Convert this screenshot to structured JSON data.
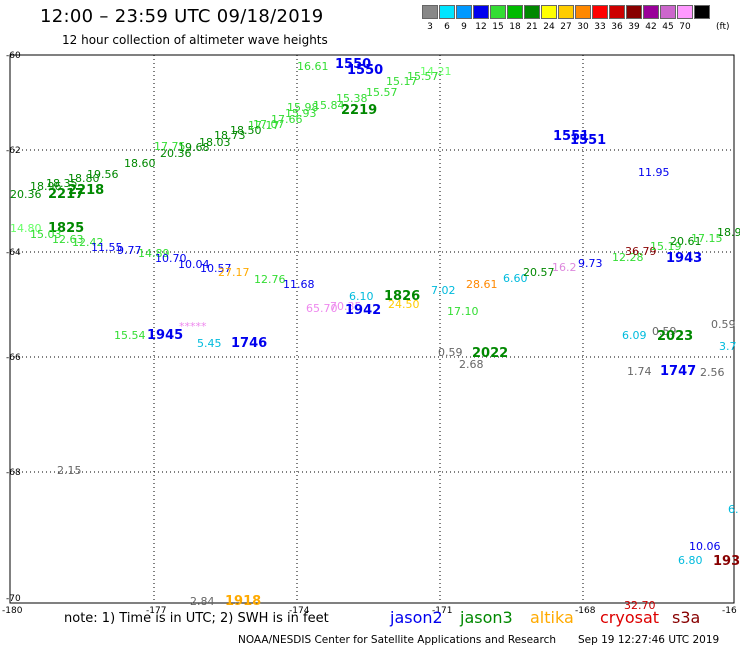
{
  "header": {
    "title": "12:00 – 23:59 UTC 09/18/2019",
    "subtitle": "12 hour collection of altimeter wave heights"
  },
  "colorbar": {
    "unit": "(ft)",
    "items": [
      {
        "label": "3",
        "color": "#888888"
      },
      {
        "label": "6",
        "color": "#00e5ff"
      },
      {
        "label": "9",
        "color": "#0099ff"
      },
      {
        "label": "12",
        "color": "#0000ee"
      },
      {
        "label": "15",
        "color": "#33dd33"
      },
      {
        "label": "18",
        "color": "#00bb00"
      },
      {
        "label": "21",
        "color": "#008800"
      },
      {
        "label": "24",
        "color": "#ffff00"
      },
      {
        "label": "27",
        "color": "#ffcc00"
      },
      {
        "label": "30",
        "color": "#ff8800"
      },
      {
        "label": "33",
        "color": "#ff0000"
      },
      {
        "label": "36",
        "color": "#cc0000"
      },
      {
        "label": "39",
        "color": "#880000"
      },
      {
        "label": "42",
        "color": "#990099"
      },
      {
        "label": "45",
        "color": "#cc66cc"
      },
      {
        "label": "70",
        "color": "#ff99ff"
      },
      {
        "label": "",
        "color": "#000000"
      }
    ]
  },
  "axes": {
    "lat_labels": [
      "-60",
      "-62",
      "-64",
      "-66",
      "-68",
      "-70"
    ],
    "lon_labels": [
      "-180",
      "-177",
      "-174",
      "-171",
      "-168",
      "-16"
    ]
  },
  "observations": [
    {
      "t": "16.61",
      "c": "#33dd33"
    },
    {
      "t": "1550",
      "c": "#0000ee",
      "b": true
    },
    {
      "t": "1550",
      "c": "#0000ee",
      "b": true
    },
    {
      "t": "14.21",
      "c": "#66ff66"
    },
    {
      "t": "15.57",
      "c": "#33dd33"
    },
    {
      "t": "15.17",
      "c": "#33dd33"
    },
    {
      "t": "15.57",
      "c": "#33dd33"
    },
    {
      "t": "15.38",
      "c": "#33dd33"
    },
    {
      "t": "2219",
      "c": "#008800",
      "b": true
    },
    {
      "t": "15.98",
      "c": "#33dd33"
    },
    {
      "t": "15.84",
      "c": "#33dd33"
    },
    {
      "t": "15.93",
      "c": "#33dd33"
    },
    {
      "t": "17.66",
      "c": "#33dd33"
    },
    {
      "t": "17.07",
      "c": "#33dd33"
    },
    {
      "t": "18.50",
      "c": "#008800"
    },
    {
      "t": "17.17",
      "c": "#33dd33"
    },
    {
      "t": "18.73",
      "c": "#008800"
    },
    {
      "t": "18.03",
      "c": "#008800"
    },
    {
      "t": "19.68",
      "c": "#008800"
    },
    {
      "t": "20.36",
      "c": "#008800"
    },
    {
      "t": "17.75",
      "c": "#33dd33"
    },
    {
      "t": "18.60",
      "c": "#008800"
    },
    {
      "t": "19.56",
      "c": "#008800"
    },
    {
      "t": "18.80",
      "c": "#008800"
    },
    {
      "t": "18.35",
      "c": "#008800"
    },
    {
      "t": "2218",
      "c": "#008800",
      "b": true
    },
    {
      "t": "2217",
      "c": "#008800",
      "b": true
    },
    {
      "t": "18.96",
      "c": "#008800"
    },
    {
      "t": "20.36",
      "c": "#008800"
    },
    {
      "t": "1551",
      "c": "#0000ee",
      "b": true
    },
    {
      "t": "1551",
      "c": "#0000ee",
      "b": true
    },
    {
      "t": "11.95",
      "c": "#0000ee"
    },
    {
      "t": "14.80",
      "c": "#66ff66"
    },
    {
      "t": "1825",
      "c": "#008800",
      "b": true
    },
    {
      "t": "15.03",
      "c": "#33dd33"
    },
    {
      "t": "12.63",
      "c": "#33dd33"
    },
    {
      "t": "12.42",
      "c": "#33dd33"
    },
    {
      "t": "11.55",
      "c": "#0000ee"
    },
    {
      "t": "9.77",
      "c": "#0000ee"
    },
    {
      "t": "14.89",
      "c": "#33dd33"
    },
    {
      "t": "10.70",
      "c": "#0000ee"
    },
    {
      "t": "10.04",
      "c": "#0000ee"
    },
    {
      "t": "10.57",
      "c": "#0000ee"
    },
    {
      "t": "27.17",
      "c": "#ffaa00"
    },
    {
      "t": "12.76",
      "c": "#33dd33"
    },
    {
      "t": "11.68",
      "c": "#0000ee"
    },
    {
      "t": "6.10",
      "c": "#00bbdd"
    },
    {
      "t": "1826",
      "c": "#008800",
      "b": true
    },
    {
      "t": "7.02",
      "c": "#00bbdd"
    },
    {
      "t": "28.61",
      "c": "#ff8800"
    },
    {
      "t": "6.60",
      "c": "#00bbdd"
    },
    {
      "t": "20.57",
      "c": "#008800"
    },
    {
      "t": "16.2",
      "c": "#dd88dd"
    },
    {
      "t": "9.73",
      "c": "#0000ee"
    },
    {
      "t": "12.28",
      "c": "#33dd33"
    },
    {
      "t": "36.79",
      "c": "#880000"
    },
    {
      "t": "15.19",
      "c": "#33dd33"
    },
    {
      "t": "20.61",
      "c": "#008800"
    },
    {
      "t": "17.15",
      "c": "#33dd33"
    },
    {
      "t": "18.9",
      "c": "#008800"
    },
    {
      "t": "1943",
      "c": "#0000ee",
      "b": true
    },
    {
      "t": "65.70",
      "c": "#ee88ee"
    },
    {
      "t": "70.35",
      "c": "#ee88ee"
    },
    {
      "t": "1942",
      "c": "#0000ee",
      "b": true
    },
    {
      "t": "24.50",
      "c": "#ffcc00"
    },
    {
      "t": "17.10",
      "c": "#33dd33"
    },
    {
      "t": "15.54",
      "c": "#33dd33"
    },
    {
      "t": "1945",
      "c": "#0000ee",
      "b": true
    },
    {
      "t": "*****",
      "c": "#ee88ee"
    },
    {
      "t": "5.45",
      "c": "#00bbdd"
    },
    {
      "t": "1746",
      "c": "#0000ee",
      "b": true
    },
    {
      "t": "0.59",
      "c": "#666666"
    },
    {
      "t": "2022",
      "c": "#008800",
      "b": true
    },
    {
      "t": "2.68",
      "c": "#666666"
    },
    {
      "t": "6.09",
      "c": "#00bbdd"
    },
    {
      "t": "0.59",
      "c": "#666666"
    },
    {
      "t": "2023",
      "c": "#008800",
      "b": true
    },
    {
      "t": "0.59",
      "c": "#666666"
    },
    {
      "t": "3.7",
      "c": "#00bbdd"
    },
    {
      "t": "1.74",
      "c": "#666666"
    },
    {
      "t": "1747",
      "c": "#0000ee",
      "b": true
    },
    {
      "t": "2.56",
      "c": "#666666"
    },
    {
      "t": "2.15",
      "c": "#666666"
    },
    {
      "t": "6.",
      "c": "#00bbdd"
    },
    {
      "t": "10.06",
      "c": "#0000ee"
    },
    {
      "t": "6.80",
      "c": "#00bbdd"
    },
    {
      "t": "193",
      "c": "#880000",
      "b": true
    },
    {
      "t": "2.84",
      "c": "#666666"
    },
    {
      "t": "1918",
      "c": "#ffaa00",
      "b": true
    },
    {
      "t": "32.70",
      "c": "#cc0000"
    }
  ],
  "note": "note:  1) Time is in UTC;  2) SWH is in feet",
  "legend": [
    {
      "label": "jason2",
      "color": "#0000ee"
    },
    {
      "label": "jason3",
      "color": "#008800"
    },
    {
      "label": "altika",
      "color": "#ffaa00"
    },
    {
      "label": "cryosat",
      "color": "#dd0000"
    },
    {
      "label": "s3a",
      "color": "#880000"
    }
  ],
  "credits": "NOAA/NESDIS Center for Satellite Applications and Research",
  "timestamp": "Sep 19 12:27:46 UTC 2019"
}
